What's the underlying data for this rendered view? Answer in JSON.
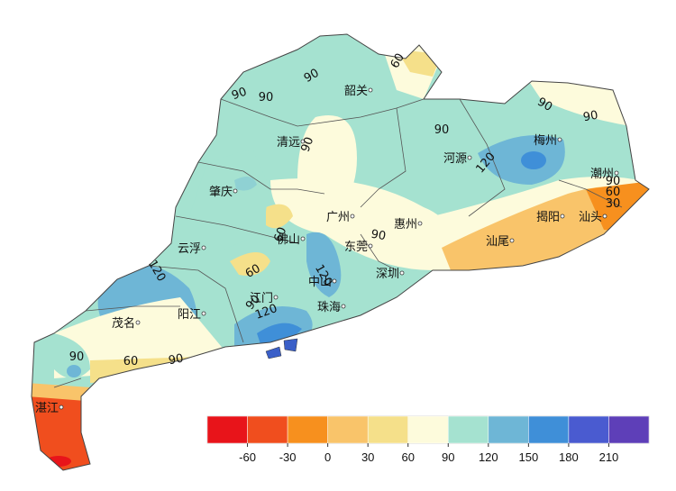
{
  "cities": [
    "韶关",
    "清远",
    "梅州",
    "河源",
    "肇庆",
    "广州",
    "惠州",
    "潮州",
    "揭阳",
    "汕头",
    "云浮",
    "佛山",
    "东莞",
    "汕尾",
    "深圳",
    "中山",
    "江门",
    "阳江",
    "茂名",
    "珠海",
    "湛江"
  ],
  "contour_labels": [
    90,
    60,
    90,
    90,
    90,
    90,
    90,
    90,
    120,
    90,
    60,
    30,
    60,
    60,
    90,
    120,
    120,
    90,
    120,
    90,
    60,
    90
  ],
  "legend": {
    "colors": [
      "#e8141a",
      "#f04e1e",
      "#f7901e",
      "#f9c46a",
      "#f5e08a",
      "#fdfbdc",
      "#a5e2d0",
      "#6eb6d6",
      "#3f8fd8",
      "#4a5bd0",
      "#5e3fb8"
    ],
    "ticks": [
      -60,
      -30,
      0,
      30,
      60,
      90,
      120,
      150,
      180,
      210
    ]
  }
}
